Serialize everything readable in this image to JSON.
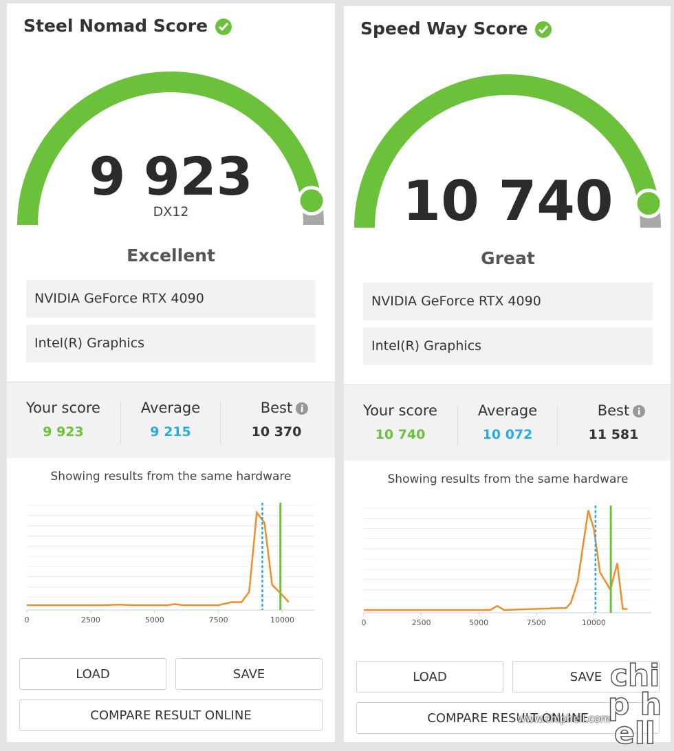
{
  "panels": [
    {
      "title": "Steel Nomad Score",
      "score": "9 923",
      "api": "DX12",
      "rating": "Excellent",
      "gpus": [
        "NVIDIA GeForce RTX 4090",
        "Intel(R) Graphics"
      ],
      "stats": [
        {
          "label": "Your score",
          "value": 9923,
          "value_label": "9 923",
          "color": "#6cc13a"
        },
        {
          "label": "Average",
          "value": 9215,
          "value_label": "9 215",
          "color": "#29abe2"
        },
        {
          "label": "Best",
          "value": 10370,
          "value_label": "10 370",
          "color": "#333333"
        }
      ],
      "caption": "Showing results from the same hardware",
      "chart": {
        "type": "line",
        "color": "#f28c28",
        "x": [
          0,
          3000,
          3600,
          4200,
          5500,
          5800,
          6100,
          7500,
          8000,
          8400,
          8700,
          9000,
          9300,
          9600,
          10000,
          10250
        ],
        "values": [
          2,
          2,
          2.5,
          2,
          2,
          3,
          2,
          2,
          5,
          5,
          15,
          93,
          83,
          22,
          12,
          5
        ],
        "xlim": [
          0,
          11250
        ],
        "ylim": [
          0,
          100
        ],
        "xticks": [
          0,
          2500,
          5000,
          7500,
          10000
        ],
        "grid": true
      },
      "buttons": [
        "LOAD",
        "SAVE",
        "COMPARE RESULT ONLINE"
      ]
    },
    {
      "title": "Speed Way Score",
      "score": "10 740",
      "rating": "Great",
      "gpus": [
        "NVIDIA GeForce RTX 4090",
        "Intel(R) Graphics"
      ],
      "stats": [
        {
          "label": "Your score",
          "value": 10740,
          "value_label": "10 740",
          "color": "#6cc13a"
        },
        {
          "label": "Average",
          "value": 10072,
          "value_label": "10 072",
          "color": "#29abe2"
        },
        {
          "label": "Best",
          "value": 11581,
          "value_label": "11 581",
          "color": "#333333"
        }
      ],
      "caption": "Showing results from the same hardware",
      "chart": {
        "type": "line",
        "color": "#f28c28",
        "x": [
          0,
          5500,
          5800,
          6100,
          8800,
          9000,
          9300,
          9760,
          10000,
          10270,
          10720,
          11020,
          11260,
          11470
        ],
        "values": [
          0,
          0,
          4,
          0,
          2,
          7,
          28,
          98,
          80,
          37,
          20,
          46,
          1,
          1
        ],
        "xlim": [
          0,
          12500
        ],
        "ylim": [
          0,
          100
        ],
        "xticks": [
          0,
          2500,
          5000,
          7500,
          10000
        ],
        "grid": true
      },
      "buttons": [
        "LOAD",
        "SAVE",
        "COMPARE RESULT ONLINE"
      ]
    }
  ],
  "watermark": "www.chiphell.com",
  "watermark_logo": "chip hell"
}
